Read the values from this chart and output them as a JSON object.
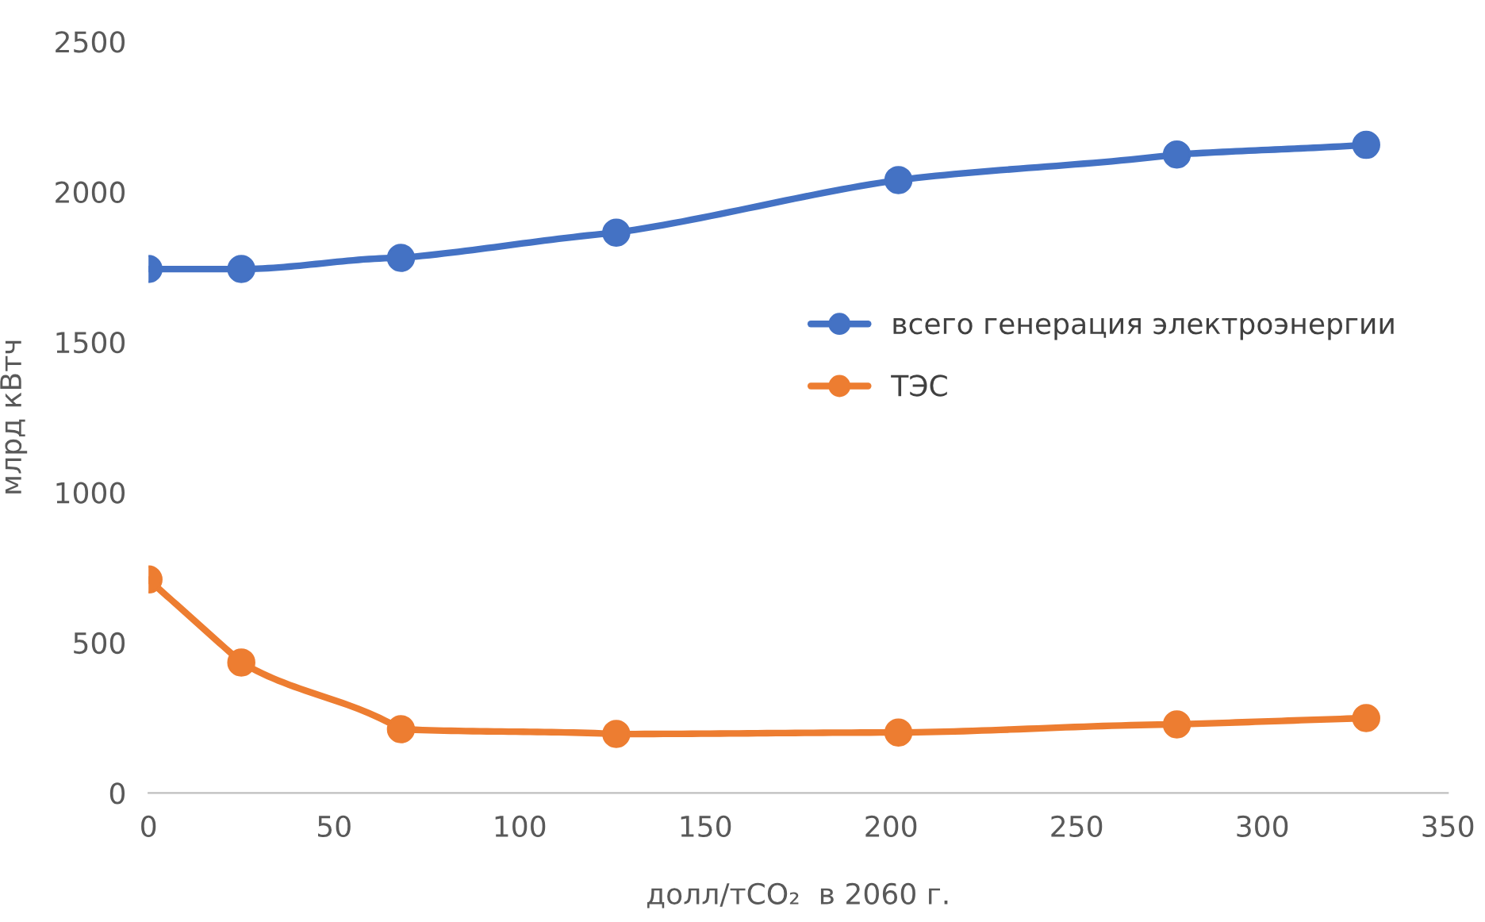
{
  "chart_data": {
    "type": "line",
    "xlabel": "долл/тCO₂  в 2060 г.",
    "ylabel": "млрд кВтч",
    "x": [
      0,
      25,
      68,
      126,
      202,
      277,
      328
    ],
    "series": [
      {
        "name": "всего генерация электроэнергии",
        "color": "#4472c4",
        "values": [
          1743,
          1743,
          1780,
          1864,
          2039,
          2124,
          2156
        ]
      },
      {
        "name": "ТЭС",
        "color": "#ed7d31",
        "values": [
          710,
          434,
          212,
          196,
          201,
          228,
          249
        ]
      }
    ],
    "xlim": [
      0,
      350
    ],
    "xticks": [
      0,
      50,
      100,
      150,
      200,
      250,
      300,
      350
    ],
    "ylim": [
      0,
      2500
    ],
    "yticks": [
      0,
      500,
      1000,
      1500,
      2000,
      2500
    ],
    "grid": false,
    "legend": "right",
    "marker": "circle",
    "line_style": "solid"
  }
}
